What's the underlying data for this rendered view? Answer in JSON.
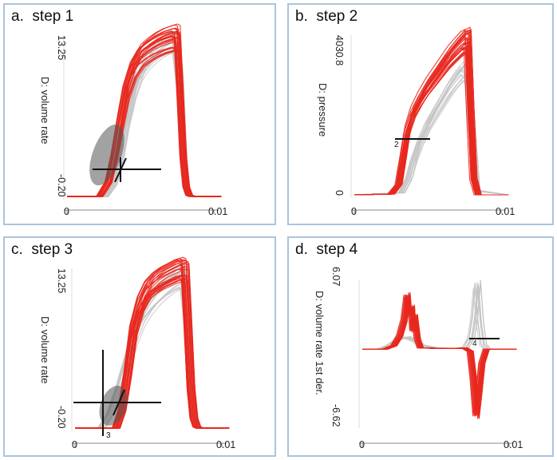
{
  "chart_data": [
    {
      "type": "line",
      "panel_label": "a.",
      "title": "step 1",
      "ylabel": "D: volume rate",
      "ylim": [
        -0.2,
        13.25
      ],
      "xlim": [
        0,
        0.01
      ],
      "y_ticks": [
        "13.25",
        "-0.20"
      ],
      "x_ticks": [
        "0",
        "0.01"
      ],
      "series": [
        {
          "role": "selected",
          "color": "#e8281e",
          "x": [
            0,
            0.0022,
            0.0028,
            0.0032,
            0.0036,
            0.004,
            0.0045,
            0.005,
            0.0055,
            0.006,
            0.0065,
            0.007,
            0.0073,
            0.0075,
            0.0077,
            0.0079,
            0.0081,
            0.0083,
            0.0085,
            0.0105
          ],
          "y": [
            -0.2,
            -0.2,
            1.0,
            3.2,
            6.0,
            8.6,
            10.5,
            11.5,
            12.0,
            12.4,
            12.7,
            12.9,
            13.0,
            12.9,
            8.0,
            3.0,
            0.6,
            -0.1,
            -0.2,
            -0.2
          ]
        },
        {
          "role": "other",
          "color": "#c4c4c4",
          "x": [
            0,
            0.0026,
            0.0032,
            0.0036,
            0.004,
            0.0045,
            0.005,
            0.0055,
            0.006,
            0.0065,
            0.007,
            0.0074,
            0.0077,
            0.0079,
            0.0081,
            0.0083,
            0.0085,
            0.0105
          ],
          "y": [
            -0.2,
            -0.2,
            0.8,
            2.6,
            5.4,
            8.0,
            9.8,
            10.8,
            11.4,
            11.9,
            12.2,
            12.3,
            9.0,
            3.5,
            0.6,
            -0.1,
            -0.2,
            -0.2
          ]
        }
      ],
      "annotations": []
    },
    {
      "type": "line",
      "panel_label": "b.",
      "title": "step 2",
      "ylabel": "D: pressure",
      "ylim": [
        0,
        4030.8
      ],
      "xlim": [
        0,
        0.01
      ],
      "y_ticks": [
        "4030.8",
        "0"
      ],
      "x_ticks": [
        "0",
        "0.01"
      ],
      "series": [
        {
          "role": "selected",
          "color": "#e8281e",
          "x": [
            0,
            0.0025,
            0.003,
            0.0033,
            0.0036,
            0.004,
            0.0045,
            0.005,
            0.0055,
            0.006,
            0.0065,
            0.007,
            0.0074,
            0.0077,
            0.0079,
            0.0081,
            0.0084,
            0.0105
          ],
          "y": [
            0,
            20,
            250,
            900,
            1600,
            2050,
            2400,
            2700,
            2950,
            3200,
            3450,
            3650,
            3800,
            3850,
            2000,
            400,
            0,
            0
          ]
        },
        {
          "role": "other",
          "color": "#c4c4c4",
          "x": [
            0,
            0.0032,
            0.0037,
            0.004,
            0.0045,
            0.005,
            0.0055,
            0.006,
            0.0065,
            0.007,
            0.0074,
            0.0077,
            0.008,
            0.0083,
            0.0105
          ],
          "y": [
            0,
            50,
            400,
            800,
            1300,
            1700,
            2000,
            2300,
            2600,
            2850,
            3000,
            2900,
            1500,
            100,
            0
          ]
        }
      ],
      "annotations": [
        "2"
      ]
    },
    {
      "type": "line",
      "panel_label": "c.",
      "title": "step 3",
      "ylabel": "D: volume rate",
      "ylim": [
        -0.2,
        13.25
      ],
      "xlim": [
        0,
        0.01
      ],
      "y_ticks": [
        "13.25",
        "-0.20"
      ],
      "x_ticks": [
        "0",
        "0.01"
      ],
      "series": [
        {
          "role": "selected",
          "color": "#e8281e",
          "x": [
            0,
            0.0028,
            0.0032,
            0.0036,
            0.004,
            0.0045,
            0.005,
            0.0055,
            0.006,
            0.0065,
            0.007,
            0.0073,
            0.0075,
            0.0077,
            0.0079,
            0.0081,
            0.0083,
            0.0085,
            0.0105
          ],
          "y": [
            -0.2,
            -0.2,
            1.2,
            4.2,
            7.8,
            10.0,
            11.2,
            11.8,
            12.2,
            12.5,
            12.8,
            12.9,
            12.8,
            8.0,
            3.0,
            0.6,
            -0.1,
            -0.2,
            -0.2
          ]
        },
        {
          "role": "other",
          "color": "#c4c4c4",
          "x": [
            0,
            0.0018,
            0.0024,
            0.003,
            0.0036,
            0.004,
            0.0045,
            0.005,
            0.0055,
            0.006,
            0.0065,
            0.007,
            0.0074,
            0.0077,
            0.0079,
            0.0081,
            0.0083,
            0.0085,
            0.0105
          ],
          "y": [
            -0.2,
            -0.2,
            1.0,
            3.0,
            5.4,
            7.0,
            8.6,
            9.6,
            10.4,
            11.0,
            11.5,
            11.9,
            12.1,
            9.0,
            3.5,
            0.6,
            -0.1,
            -0.2,
            -0.2
          ]
        }
      ],
      "annotations": [
        "3"
      ]
    },
    {
      "type": "line",
      "panel_label": "d.",
      "title": "step 4",
      "ylabel": "D: volume rate 1st der.",
      "ylim": [
        -6.62,
        6.07
      ],
      "xlim": [
        0,
        0.01
      ],
      "y_ticks": [
        "6.07",
        "-6.62"
      ],
      "x_ticks": [
        "0",
        "0.01"
      ],
      "series": [
        {
          "role": "selected",
          "color": "#e8281e",
          "x": [
            0,
            0.0016,
            0.0022,
            0.0026,
            0.0029,
            0.0031,
            0.0032,
            0.0034,
            0.0035,
            0.0036,
            0.0038,
            0.004,
            0.0045,
            0.005,
            0.0055,
            0.006,
            0.0065,
            0.007,
            0.0074,
            0.0076,
            0.0078,
            0.008,
            0.0082,
            0.0085,
            0.0105
          ],
          "y": [
            0,
            0,
            0.3,
            1.2,
            2.6,
            4.7,
            3.2,
            3.6,
            1.6,
            2.9,
            0.9,
            0.1,
            0.1,
            0.05,
            0.05,
            0.05,
            0.05,
            0.1,
            -0.2,
            -2.5,
            -5.8,
            -3.6,
            -1.2,
            0,
            0
          ]
        },
        {
          "role": "other",
          "color": "#c4c4c4",
          "x": [
            0,
            0.0012,
            0.0018,
            0.0024,
            0.003,
            0.0036,
            0.004,
            0.005,
            0.006,
            0.007,
            0.0074,
            0.0076,
            0.0078,
            0.008,
            0.0082,
            0.0085,
            0.0105
          ],
          "y": [
            0,
            0,
            0.3,
            0.8,
            1.0,
            0.7,
            0.3,
            0.1,
            0.05,
            0.1,
            1.0,
            2.6,
            5.5,
            2.2,
            0.4,
            0,
            0
          ]
        }
      ],
      "annotations": [
        "4"
      ]
    }
  ]
}
